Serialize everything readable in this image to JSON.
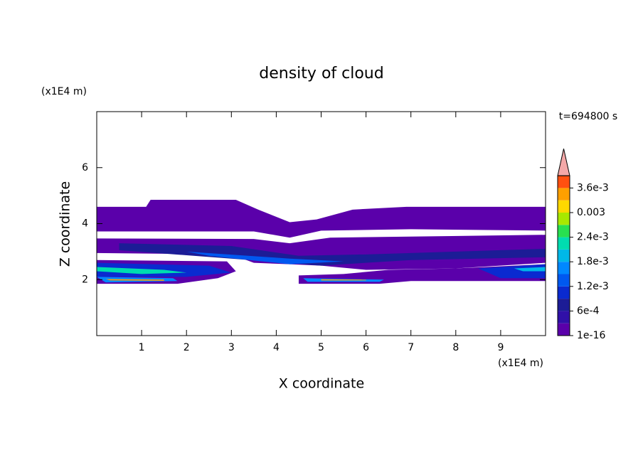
{
  "chart_data": {
    "type": "contour",
    "title": "density of cloud",
    "x_label": "X coordinate",
    "y_label": "Z coordinate",
    "x_unit": "(x1E4 m)",
    "y_unit": "(x1E4 m)",
    "annotation": "t=694800 s",
    "xlim": [
      0,
      10
    ],
    "ylim": [
      0,
      8
    ],
    "xticks": [
      1,
      2,
      3,
      4,
      5,
      6,
      7,
      8,
      9
    ],
    "yticks": [
      2,
      4,
      6
    ],
    "levels": [
      1e-16,
      0.0003,
      0.0006,
      0.0009,
      0.0012,
      0.0015,
      0.0018,
      0.0021,
      0.0024,
      0.0027,
      0.003,
      0.0033,
      0.0036,
      0.0039
    ],
    "colors": [
      "#5a00aa",
      "#3010a8",
      "#1c1c96",
      "#0a2ad0",
      "#0058f0",
      "#0088ff",
      "#00b8e8",
      "#00dcb0",
      "#28e050",
      "#a8e800",
      "#ffd800",
      "#ffa000",
      "#ff5010"
    ],
    "extend_color": "#f4a8a8",
    "colorbar_ticks": [
      1e-16,
      {
        "value": 0.0006,
        "label": "6e-4"
      },
      {
        "value": 0.0012,
        "label": "1.2e-3"
      },
      {
        "value": 0.0018,
        "label": "1.8e-3"
      },
      {
        "value": 0.0024,
        "label": "2.4e-3"
      },
      0.003,
      {
        "value": 0.0036,
        "label": "3.6e-3"
      }
    ],
    "regions": [
      {
        "level": 1e-16,
        "x": [
          0,
          1.1,
          1.2,
          3.1,
          3.6,
          4.3,
          4.9,
          5.7,
          6.9,
          10,
          10,
          7,
          5,
          4.3,
          3.5,
          0
        ],
        "z": [
          4.6,
          4.6,
          4.85,
          4.85,
          4.5,
          4.05,
          4.15,
          4.5,
          4.6,
          4.6,
          3.75,
          3.8,
          3.75,
          3.5,
          3.72,
          3.72
        ]
      },
      {
        "level": 1e-16,
        "x": [
          0,
          3.5,
          4.3,
          5.2,
          7.6,
          10,
          10,
          8,
          6,
          5,
          4.3,
          3.5,
          3,
          0
        ],
        "z": [
          3.47,
          3.45,
          3.3,
          3.5,
          3.55,
          3.6,
          2.6,
          2.4,
          2.35,
          2.5,
          2.55,
          2.6,
          2.9,
          2.95
        ]
      },
      {
        "level": 1e-16,
        "x": [
          0,
          2.9,
          3.1,
          2.7,
          1.8,
          0
        ],
        "z": [
          2.7,
          2.65,
          2.3,
          2.05,
          1.85,
          1.85
        ]
      },
      {
        "level": 1e-16,
        "x": [
          4.5,
          5.5,
          6.5,
          8,
          10,
          10,
          9,
          7,
          6.3,
          4.5
        ],
        "z": [
          2.15,
          2.2,
          2.35,
          2.4,
          2.55,
          1.95,
          1.95,
          1.95,
          1.85,
          1.85
        ]
      },
      {
        "level": 0.0006,
        "x": [
          0.5,
          3,
          4.5,
          6,
          8,
          10,
          10,
          7,
          5,
          3,
          0.5
        ],
        "z": [
          3.3,
          3.2,
          2.85,
          2.9,
          3.0,
          3.1,
          2.8,
          2.7,
          2.5,
          2.75,
          3.05
        ]
      },
      {
        "level": 0.0012,
        "x": [
          2,
          4.3,
          5.5,
          4.3,
          2.5
        ],
        "z": [
          3.0,
          2.75,
          2.65,
          2.55,
          2.85
        ]
      },
      {
        "level": 0.0009,
        "x": [
          0,
          2.5,
          3,
          2,
          0
        ],
        "z": [
          2.6,
          2.5,
          2.25,
          2.1,
          2.1
        ]
      },
      {
        "level": 0.0021,
        "x": [
          0,
          1.5,
          2,
          1,
          0
        ],
        "z": [
          2.45,
          2.35,
          2.25,
          2.2,
          2.3
        ]
      },
      {
        "level": 0.0015,
        "x": [
          0,
          1.7,
          1.8,
          0.2
        ],
        "z": [
          2.1,
          2.05,
          1.95,
          1.9
        ]
      },
      {
        "level": 0.0033,
        "x": [
          0.2,
          1.5,
          1.5,
          0.3
        ],
        "z": [
          2.02,
          2.0,
          1.96,
          1.97
        ]
      },
      {
        "level": 0.0015,
        "x": [
          4.6,
          6.4,
          6.3,
          4.7
        ],
        "z": [
          2.05,
          2.0,
          1.92,
          1.92
        ]
      },
      {
        "level": 0.0033,
        "x": [
          5,
          6,
          6,
          5
        ],
        "z": [
          2.01,
          2.0,
          1.97,
          1.97
        ]
      },
      {
        "level": 0.0009,
        "x": [
          8.5,
          10,
          10,
          9
        ],
        "z": [
          2.4,
          2.55,
          2.05,
          2.05
        ]
      },
      {
        "level": 0.0018,
        "x": [
          9.3,
          10,
          10,
          9.5
        ],
        "z": [
          2.4,
          2.45,
          2.3,
          2.3
        ]
      }
    ]
  }
}
